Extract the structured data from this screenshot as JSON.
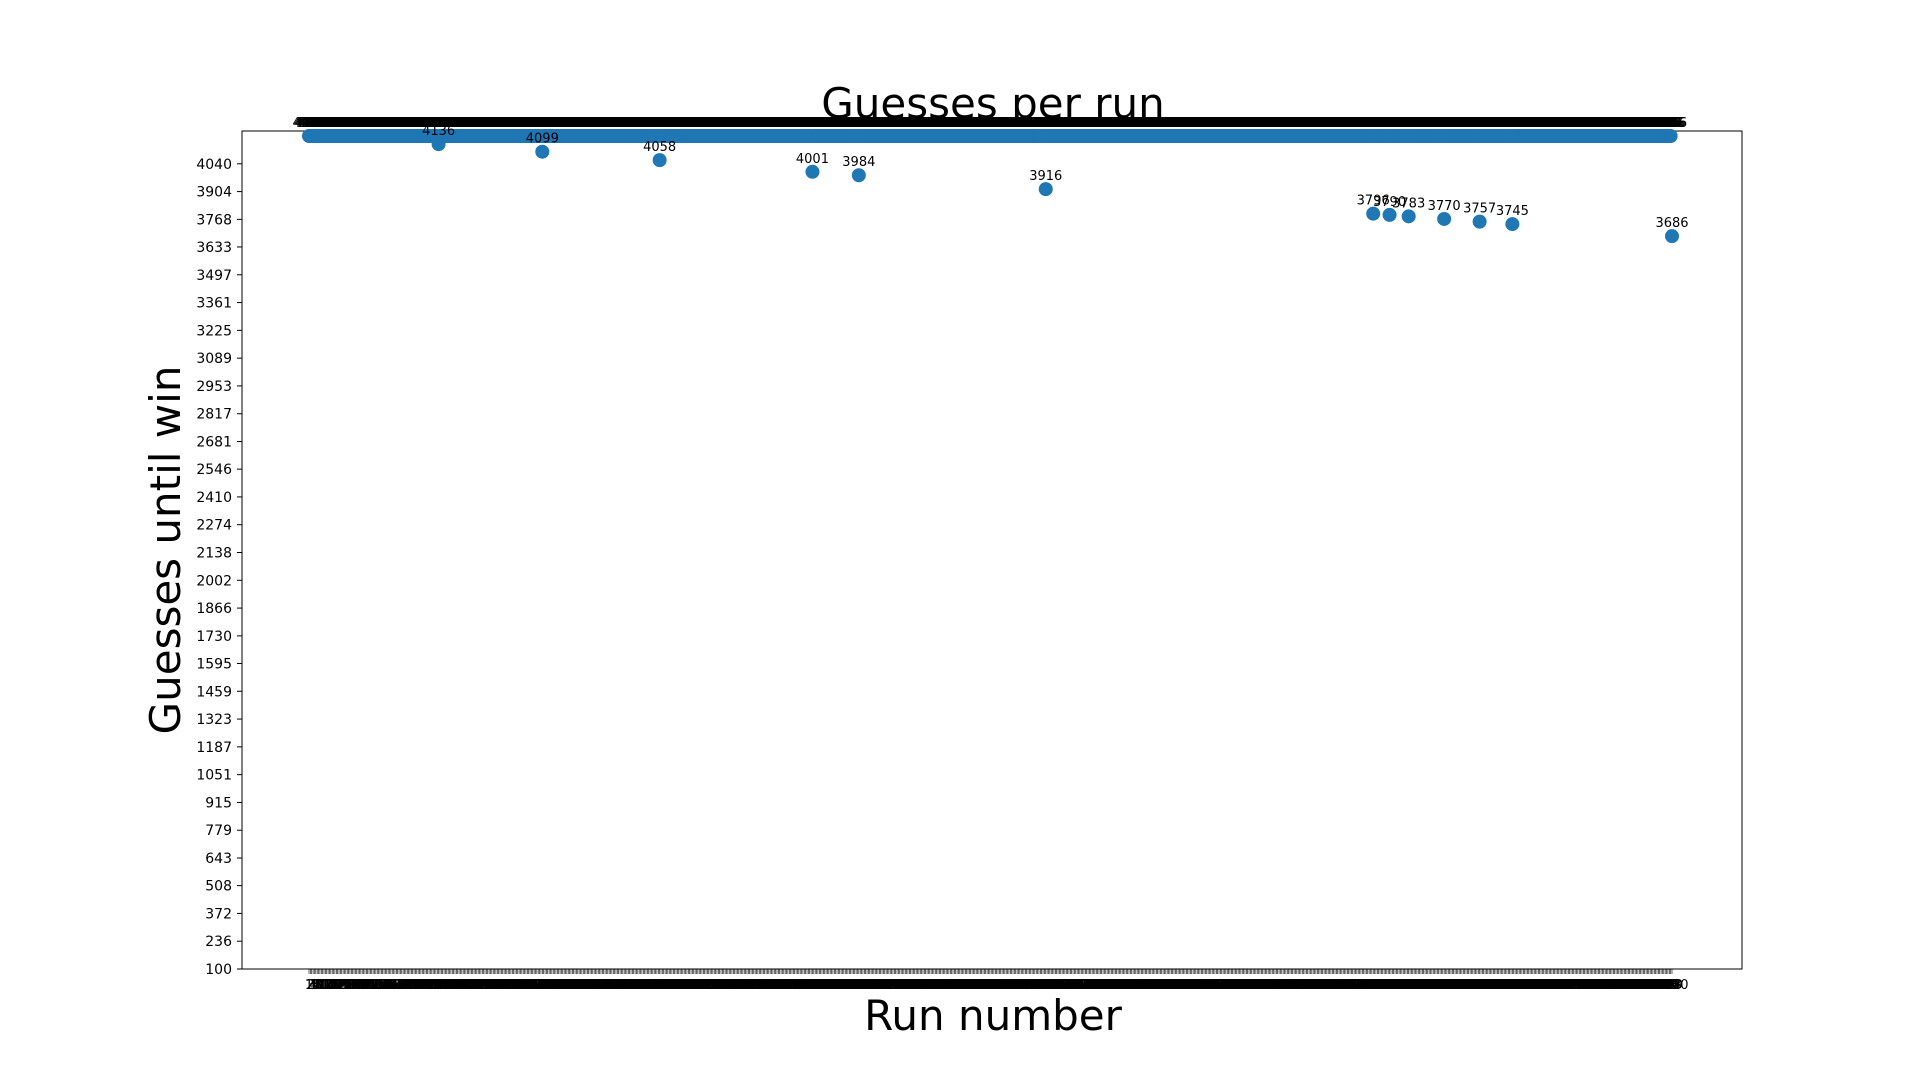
{
  "chart_data": {
    "type": "scatter",
    "title": "Guesses per run",
    "xlabel": "Run number",
    "ylabel": "Guesses until win",
    "ylim": [
      100,
      4176
    ],
    "yticks": [
      100,
      236,
      372,
      508,
      643,
      779,
      915,
      1051,
      1187,
      1323,
      1459,
      1595,
      1730,
      1866,
      2002,
      2138,
      2274,
      2410,
      2546,
      2681,
      2817,
      2953,
      3089,
      3225,
      3361,
      3497,
      3633,
      3768,
      3904,
      4040
    ],
    "grid": false,
    "marker_color": "#1f77b4",
    "run_count": 1000,
    "series": [
      {
        "default_value": 4176,
        "points": [
          {
            "x": 96,
            "y": 4136,
            "label": "4136"
          },
          {
            "x": 172,
            "y": 4099,
            "label": "4099"
          },
          {
            "x": 258,
            "y": 4058,
            "label": "4058"
          },
          {
            "x": 370,
            "y": 4001,
            "label": "4001"
          },
          {
            "x": 404,
            "y": 3984,
            "label": "3984"
          },
          {
            "x": 541,
            "y": 3916,
            "label": "3916"
          },
          {
            "x": 781,
            "y": 3796,
            "label": "3796"
          },
          {
            "x": 793,
            "y": 3790,
            "label": "3790"
          },
          {
            "x": 807,
            "y": 3783,
            "label": "3783"
          },
          {
            "x": 833,
            "y": 3770,
            "label": "3770"
          },
          {
            "x": 859,
            "y": 3757,
            "label": "3757"
          },
          {
            "x": 883,
            "y": 3745,
            "label": "3745"
          },
          {
            "x": 1000,
            "y": 3686,
            "label": "3686"
          }
        ]
      }
    ]
  }
}
